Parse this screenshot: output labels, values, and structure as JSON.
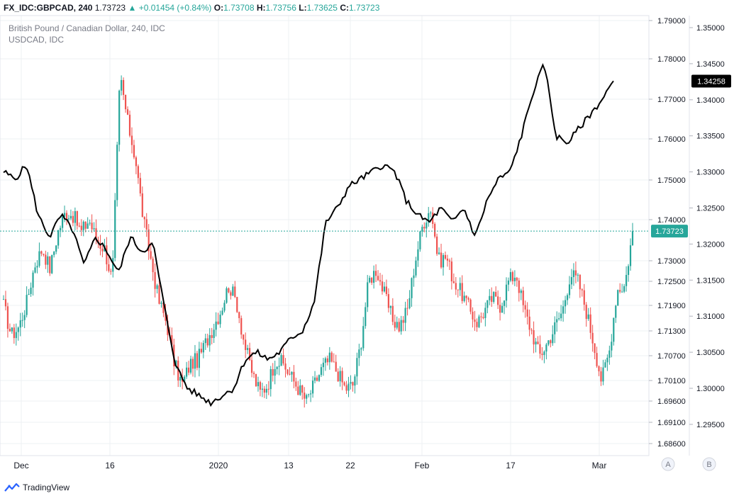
{
  "header": {
    "symbol": "FX_IDC:GBPCAD, 240",
    "last": "1.73723",
    "change": "+0.01454 (+0.84%)",
    "o_label": "O:",
    "o_value": "1.73708",
    "h_label": "H:",
    "h_value": "1.73756",
    "l_label": "L:",
    "l_value": "1.73625",
    "c_label": "C:",
    "c_value": "1.73723"
  },
  "legend": {
    "main_title": "British Pound / Canadian Dollar, 240, IDC",
    "overlay_title": "USDCAD, IDC"
  },
  "footer": {
    "brand": "TradingView"
  },
  "scale_buttons": [
    "A",
    "B"
  ],
  "colors": {
    "up": "#26a69a",
    "down": "#ef5350",
    "overlay": "#000000",
    "grid": "#eef0f3",
    "price_badge": "#26a69a",
    "overlay_badge": "#000000"
  },
  "chart_data": {
    "type": "line",
    "title": "British Pound / Canadian Dollar, 240, IDC",
    "x_tick_labels": [
      "Dec",
      "16",
      "2020",
      "13",
      "22",
      "Feb",
      "17",
      "Mar"
    ],
    "left_axis": {
      "series": "GBPCAD",
      "ticks": [
        "1.79000",
        "1.78000",
        "1.77000",
        "1.76000",
        "1.75000",
        "1.74000",
        "1.73000",
        "1.72500",
        "1.71900",
        "1.71300",
        "1.70700",
        "1.70100",
        "1.69600",
        "1.69100",
        "1.68600"
      ],
      "last_badge": "1.73723"
    },
    "right_axis": {
      "series": "USDCAD",
      "ticks": [
        "1.35000",
        "1.34500",
        "1.34000",
        "1.33500",
        "1.33000",
        "1.32500",
        "1.32000",
        "1.31500",
        "1.31000",
        "1.30500",
        "1.30000",
        "1.29500"
      ],
      "last_badge": "1.34258"
    },
    "series": [
      {
        "name": "GBPCAD",
        "style": "candlestick",
        "close_path": [
          1.719,
          1.712,
          1.714,
          1.72,
          1.729,
          1.733,
          1.728,
          1.737,
          1.742,
          1.741,
          1.737,
          1.74,
          1.735,
          1.733,
          1.725,
          1.776,
          1.764,
          1.755,
          1.74,
          1.73,
          1.72,
          1.715,
          1.705,
          1.7,
          1.705,
          1.706,
          1.71,
          1.714,
          1.718,
          1.724,
          1.72,
          1.71,
          1.703,
          1.698,
          1.7,
          1.706,
          1.705,
          1.702,
          1.699,
          1.696,
          1.7,
          1.704,
          1.706,
          1.703,
          1.699,
          1.7,
          1.71,
          1.725,
          1.728,
          1.722,
          1.716,
          1.714,
          1.718,
          1.73,
          1.739,
          1.743,
          1.73,
          1.731,
          1.725,
          1.722,
          1.718,
          1.715,
          1.718,
          1.721,
          1.719,
          1.725,
          1.727,
          1.718,
          1.713,
          1.707,
          1.71,
          1.714,
          1.718,
          1.727,
          1.725,
          1.718,
          1.71,
          1.701,
          1.708,
          1.723,
          1.724,
          1.7372
        ]
      },
      {
        "name": "USDCAD",
        "style": "line",
        "values": [
          1.33,
          1.329,
          1.331,
          1.324,
          1.321,
          1.324,
          1.322,
          1.317,
          1.321,
          1.319,
          1.316,
          1.321,
          1.319,
          1.32,
          1.311,
          1.303,
          1.3,
          1.299,
          1.298,
          1.299,
          1.3,
          1.304,
          1.305,
          1.304,
          1.305,
          1.307,
          1.308,
          1.312,
          1.323,
          1.325,
          1.328,
          1.329,
          1.33,
          1.331,
          1.33,
          1.326,
          1.324,
          1.323,
          1.325,
          1.323,
          1.325,
          1.321,
          1.326,
          1.329,
          1.33,
          1.335,
          1.341,
          1.345,
          1.335,
          1.334,
          1.336,
          1.338,
          1.34,
          1.3426
        ]
      }
    ],
    "grid": true
  }
}
